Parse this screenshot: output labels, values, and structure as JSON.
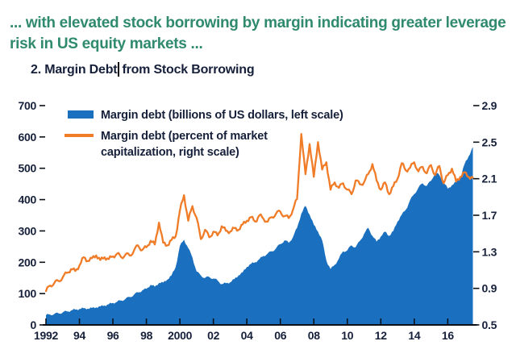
{
  "page": {
    "headline_line1": "... with elevated stock borrowing by margin indicating greater leverage",
    "headline_line2": "risk in US equity markets ...",
    "figure_title_before_cursor": "2. Margin Debt",
    "figure_title_after_cursor": "from Stock Borrowing"
  },
  "colors": {
    "headline_green": "#2f8a6e",
    "text_dark": "#16203a",
    "axis_black": "#0c1118",
    "series_blue": "#1a6fbf",
    "series_orange": "#f07c28"
  },
  "chart_data": {
    "type": "area+line",
    "title": "2. Margin Debt from Stock Borrowing",
    "x_range": [
      1992,
      2017.5
    ],
    "x_step": 0.25,
    "x_ticks": [
      {
        "year": 1992,
        "label": "1992"
      },
      {
        "year": 1994,
        "label": "94"
      },
      {
        "year": 1996,
        "label": "96"
      },
      {
        "year": 1998,
        "label": "98"
      },
      {
        "year": 2000,
        "label": "2000"
      },
      {
        "year": 2002,
        "label": "02"
      },
      {
        "year": 2004,
        "label": "04"
      },
      {
        "year": 2006,
        "label": "06"
      },
      {
        "year": 2008,
        "label": "08"
      },
      {
        "year": 2010,
        "label": "10"
      },
      {
        "year": 2012,
        "label": "12"
      },
      {
        "year": 2014,
        "label": "14"
      },
      {
        "year": 2016,
        "label": "16"
      }
    ],
    "left_axis": {
      "min": 0,
      "max": 700,
      "ticks": [
        0,
        100,
        200,
        300,
        400,
        500,
        600,
        700
      ]
    },
    "right_axis": {
      "min": 0.5,
      "max": 2.9,
      "ticks": [
        0.5,
        0.9,
        1.3,
        1.7,
        2.1,
        2.5,
        2.9
      ]
    },
    "grid": false,
    "legend_position": "top-left-inside",
    "series": [
      {
        "name": "margin_debt_billions",
        "label": "Margin debt (billions of US dollars, left scale)",
        "type": "area",
        "axis": "left",
        "color": "#1a6fbf",
        "values": [
          31,
          33,
          35,
          37,
          40,
          43,
          46,
          49,
          51,
          53,
          52,
          54,
          56,
          59,
          62,
          66,
          70,
          74,
          78,
          83,
          89,
          96,
          104,
          110,
          115,
          128,
          122,
          134,
          135,
          145,
          158,
          185,
          252,
          272,
          245,
          215,
          170,
          158,
          150,
          153,
          148,
          142,
          130,
          133,
          136,
          146,
          158,
          168,
          185,
          195,
          200,
          210,
          220,
          228,
          235,
          245,
          258,
          270,
          262,
          280,
          310,
          355,
          380,
          352,
          320,
          298,
          270,
          205,
          178,
          192,
          212,
          235,
          238,
          254,
          248,
          268,
          290,
          310,
          284,
          266,
          282,
          298,
          284,
          300,
          330,
          352,
          368,
          398,
          418,
          438,
          452,
          444,
          460,
          486,
          478,
          455,
          435,
          446,
          456,
          470,
          513,
          538,
          568
        ]
      },
      {
        "name": "margin_debt_pct_market_cap",
        "label": "Margin debt (percent of market capitalization, right scale)",
        "type": "line",
        "axis": "right",
        "color": "#f07c28",
        "values": [
          0.87,
          0.93,
          0.96,
          0.98,
          1.02,
          1.07,
          1.11,
          1.09,
          1.15,
          1.24,
          1.2,
          1.23,
          1.26,
          1.21,
          1.24,
          1.22,
          1.25,
          1.28,
          1.24,
          1.27,
          1.26,
          1.31,
          1.37,
          1.32,
          1.35,
          1.42,
          1.38,
          1.62,
          1.4,
          1.37,
          1.43,
          1.47,
          1.75,
          1.92,
          1.64,
          1.8,
          1.67,
          1.44,
          1.54,
          1.46,
          1.52,
          1.48,
          1.58,
          1.53,
          1.52,
          1.56,
          1.54,
          1.6,
          1.64,
          1.68,
          1.63,
          1.7,
          1.66,
          1.63,
          1.68,
          1.72,
          1.74,
          1.69,
          1.67,
          1.76,
          1.88,
          2.59,
          2.15,
          2.48,
          2.12,
          2.5,
          2.2,
          2.28,
          1.98,
          2.06,
          2.0,
          2.05,
          1.98,
          1.93,
          2.08,
          2.04,
          2.06,
          2.15,
          2.26,
          2.08,
          1.98,
          2.06,
          1.93,
          2.02,
          2.1,
          2.27,
          2.19,
          2.22,
          2.28,
          2.18,
          2.23,
          2.16,
          2.25,
          2.14,
          2.24,
          2.05,
          2.14,
          2.21,
          2.07,
          2.12,
          2.17,
          2.12,
          2.11
        ]
      }
    ]
  }
}
